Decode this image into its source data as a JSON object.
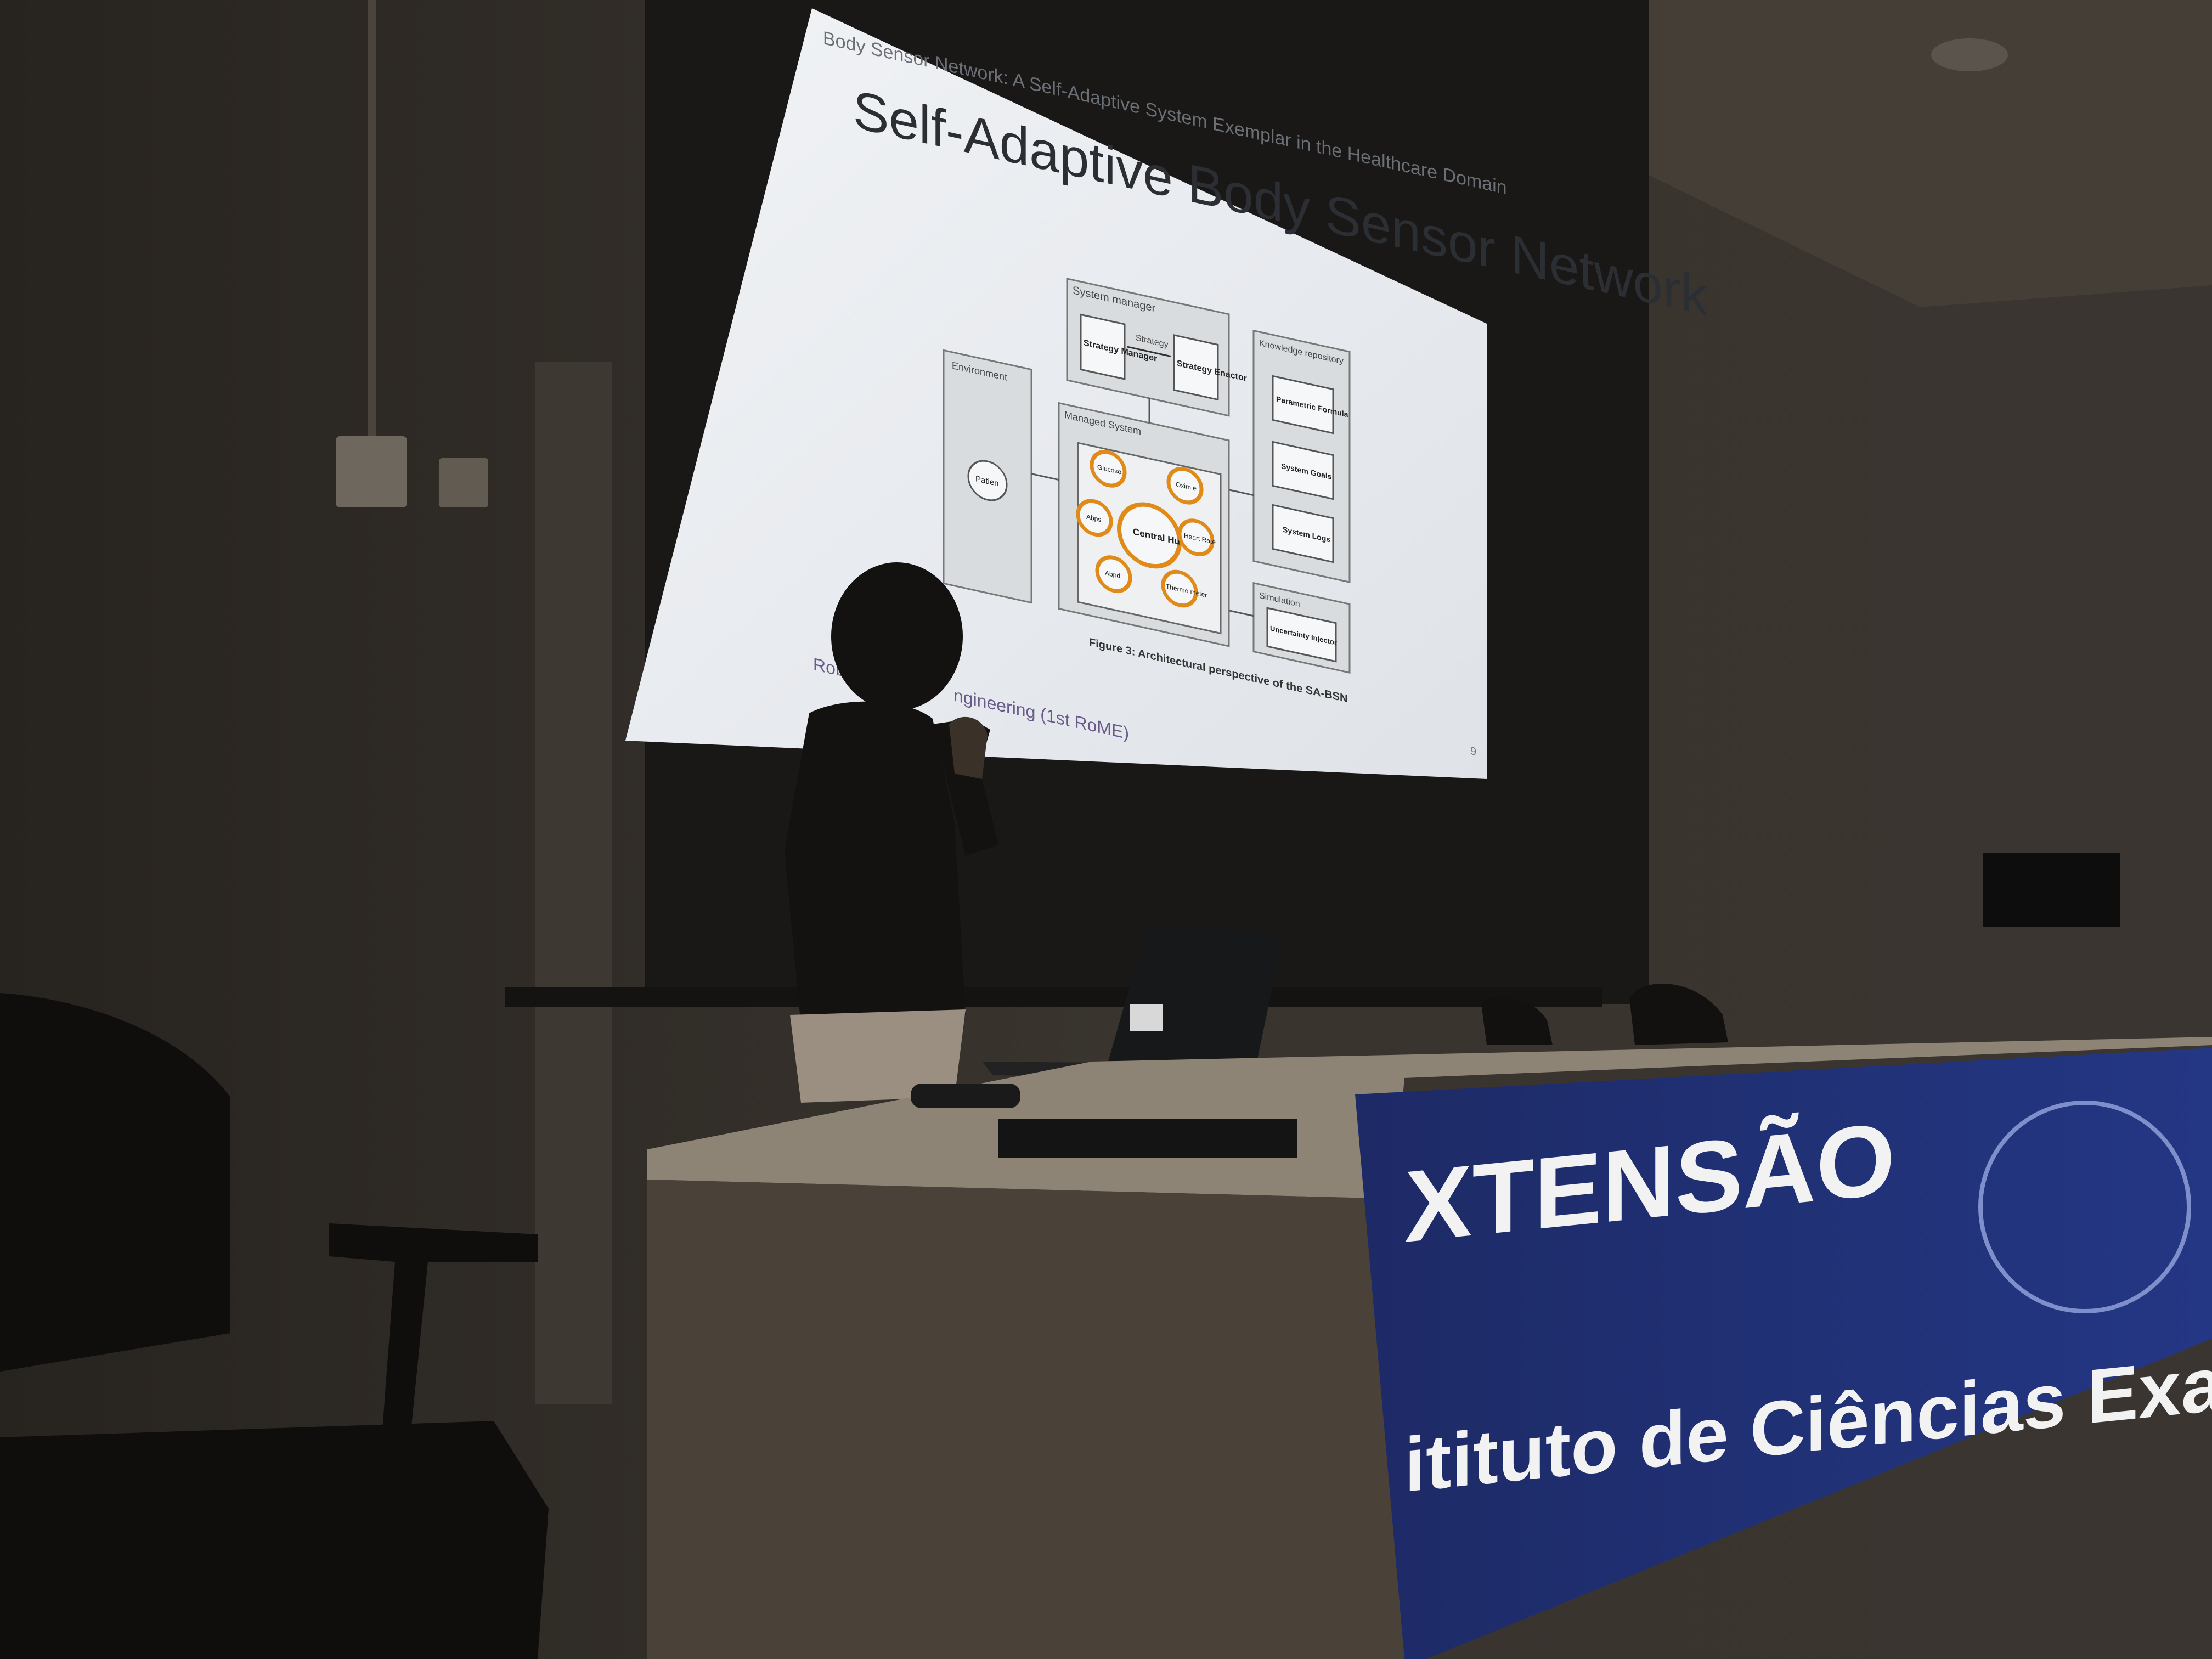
{
  "slide": {
    "header": "Body Sensor Network: A Self-Adaptive System Exemplar in the Healthcare Domain",
    "title": "Self-Adaptive Body Sensor Network",
    "diagram": {
      "system_manager": "System manager",
      "strategy_manager": "Strategy Manager",
      "strategy_arrow": "Strategy",
      "strategy_enactor": "Strategy Enactor",
      "environment": "Environment",
      "patient": "Patien",
      "managed_system": "Managed System",
      "central_hub": "Central Hub",
      "sensors": [
        "Glucose",
        "Oxim e",
        "Heart Rate",
        "Thermo meter",
        "Abpd",
        "Abps"
      ],
      "knowledge_repository": "Knowledge repository",
      "parametric_formula": "Parametric Formula",
      "system_goals": "System Goals",
      "system_logs": "System Logs",
      "simulation": "Simulation",
      "uncertainty_injector": "Uncertainty Injector"
    },
    "caption": "Figure 3: Architectural perspective of the SA-BSN",
    "footer_left": "Robo",
    "footer_right": "ngineering (1st RoME)",
    "page_number": "9"
  },
  "banner": {
    "line1": "XTENSÃO",
    "line2": "itituto de Ciências Exatas"
  },
  "colors": {
    "wall": "#2f2b27",
    "screen": "#e9ecef",
    "banner": "#1f2f72",
    "sensor_ring": "#e08a1a"
  }
}
